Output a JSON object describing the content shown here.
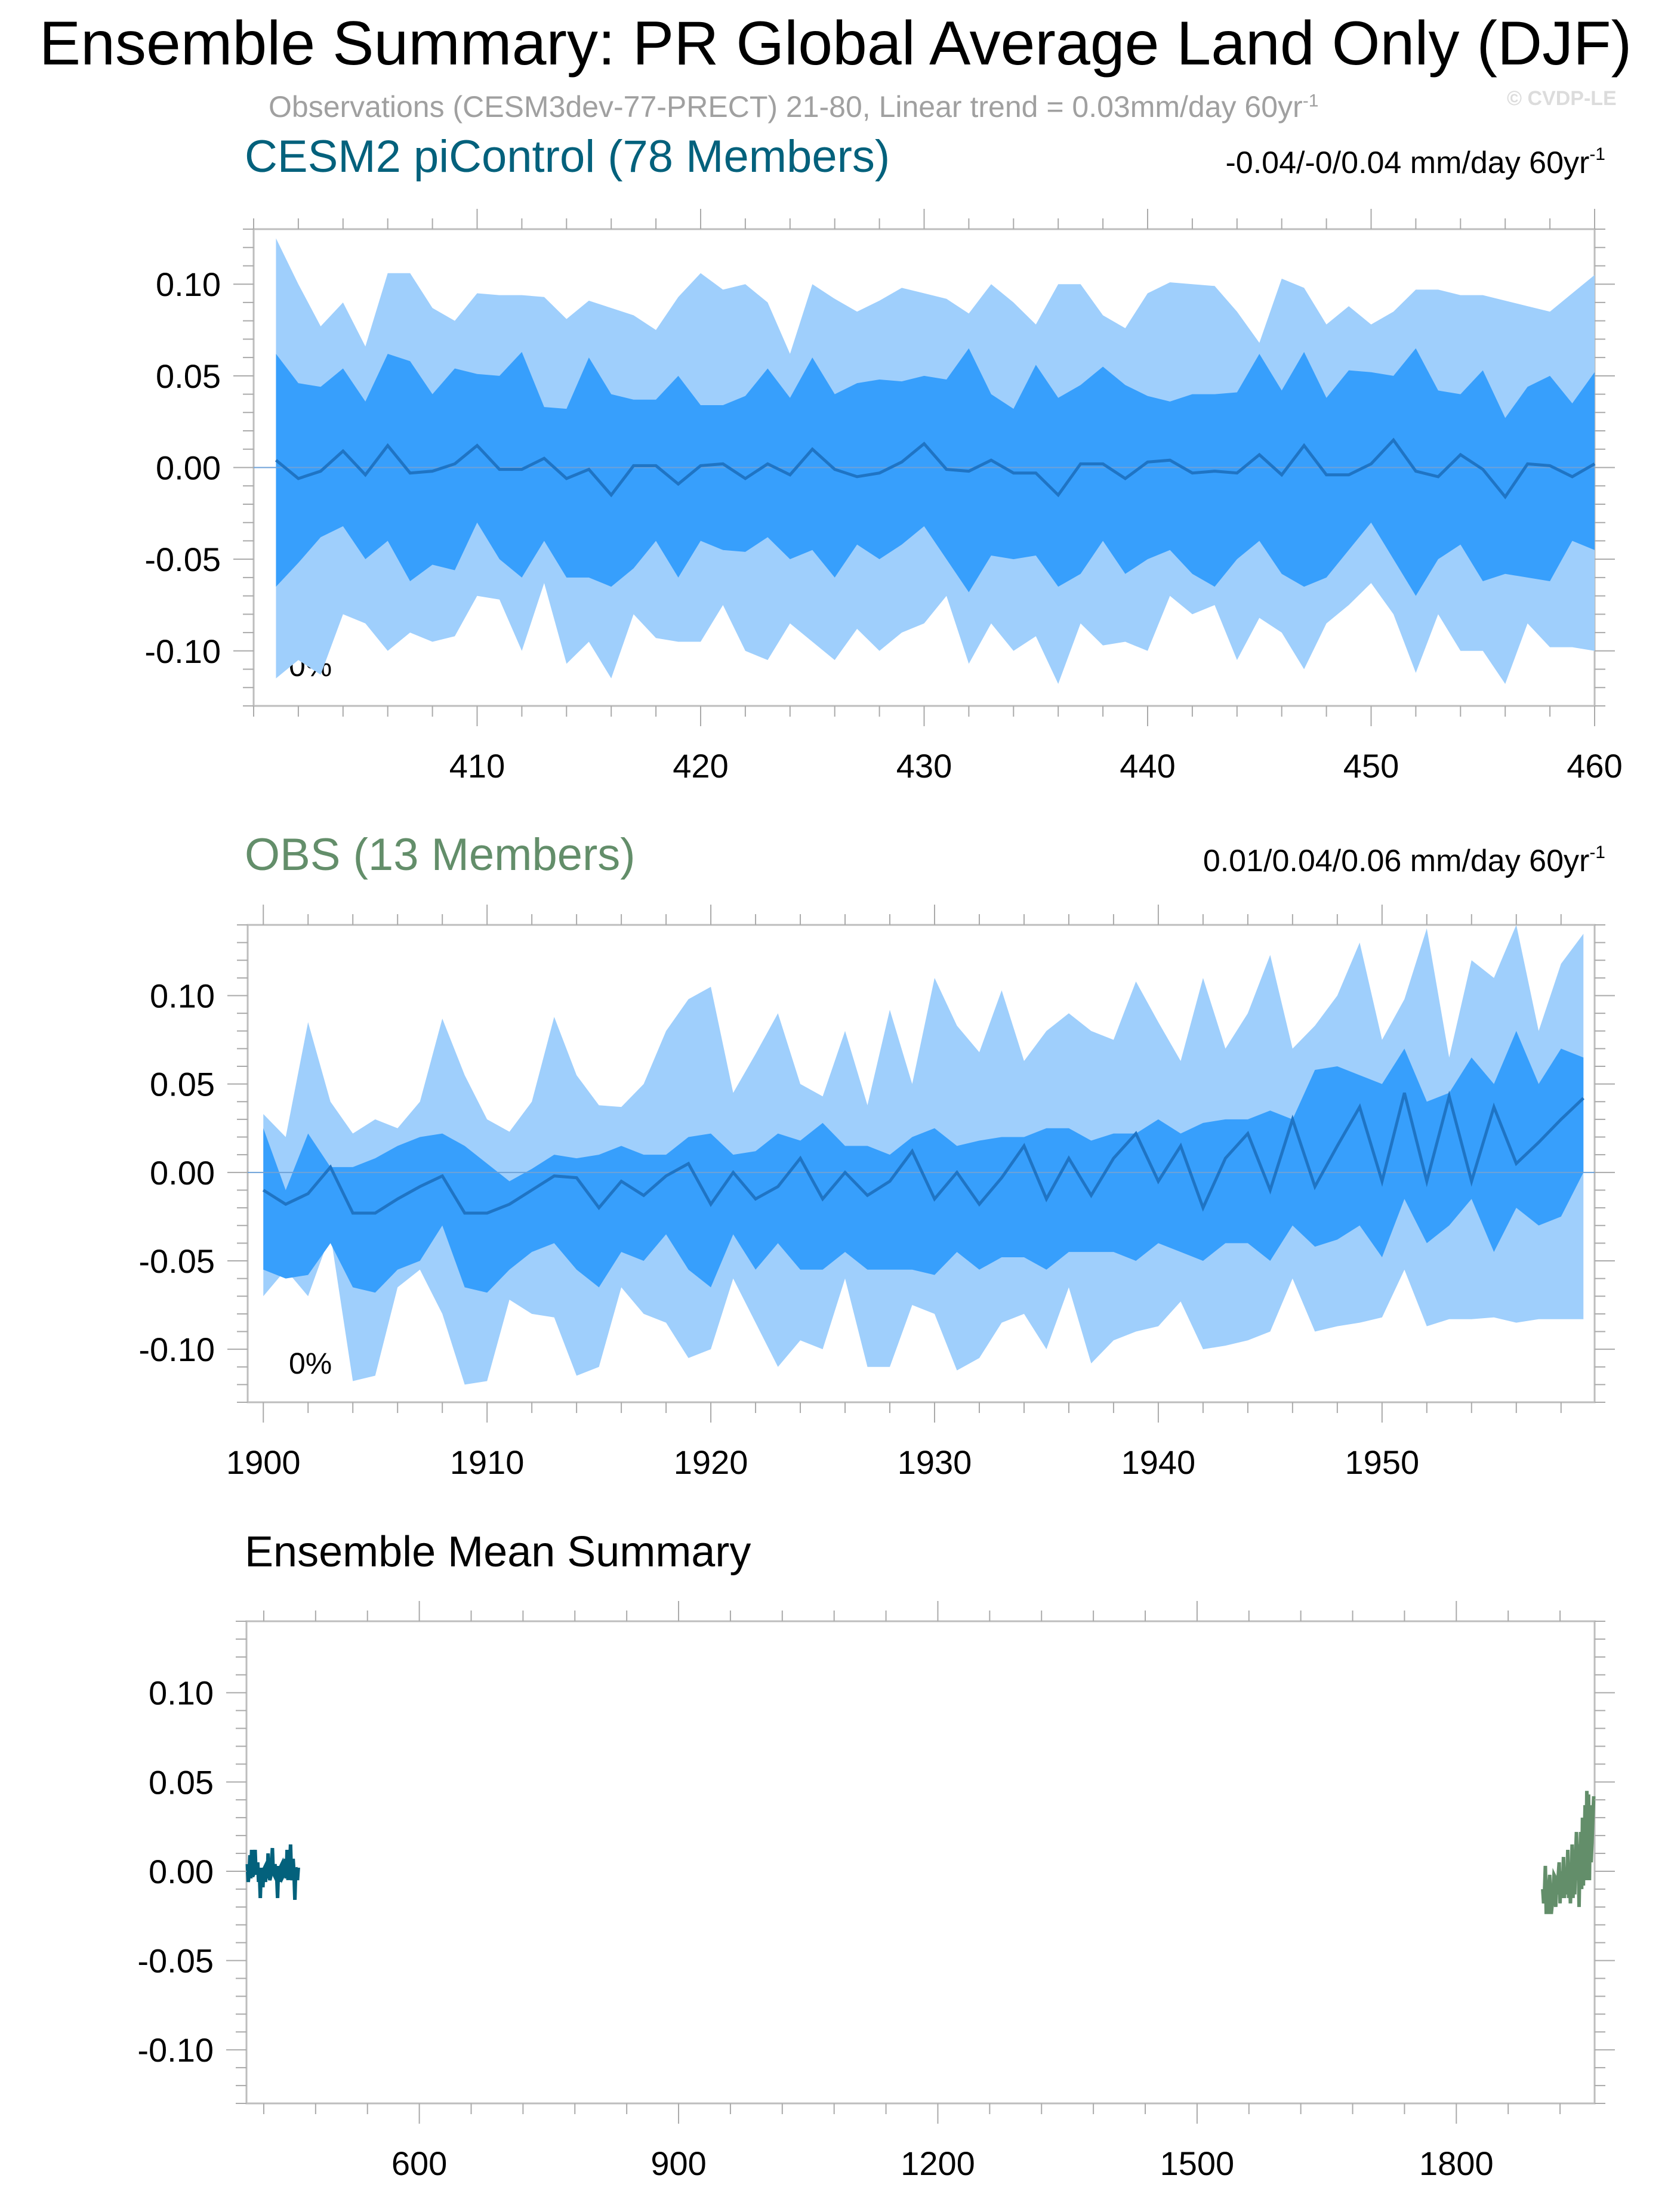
{
  "header": {
    "title": "Ensemble Summary: PR Global Average Land Only (DJF)",
    "subtitle_main": "Observations (CESM3dev-77-PRECT) 21-80, Linear trend = 0.03mm/day 60yr",
    "subtitle_sup": "-1",
    "watermark": "© CVDP-LE"
  },
  "colors": {
    "outer_band": "#9fcffc",
    "inner_band": "#379ffc",
    "mean_line": "#1f74c4",
    "cesm2_title": "#03617c",
    "obs_title": "#638e6a",
    "cesm2_mean": "#03617c",
    "obs_mean": "#638e6a",
    "axis": "#000000",
    "frame": "#bdbdbd"
  },
  "chart_data": [
    {
      "type": "area",
      "title": "CESM2 piControl (78 Members)",
      "trend_label": "-0.04/-0/0.04 mm/day 60yr",
      "trend_sup": "-1",
      "percent_label": "0%",
      "xlim": [
        400,
        460
      ],
      "ylim": [
        -0.13,
        0.13
      ],
      "yticks": [
        0.1,
        0.05,
        0.0,
        -0.05,
        -0.1
      ],
      "ytick_labels": [
        "0.10",
        "0.05",
        "0.00",
        "-0.05",
        "-0.10"
      ],
      "xticks": [
        410,
        420,
        430,
        440,
        450,
        460
      ],
      "xtick_labels": [
        "410",
        "420",
        "430",
        "440",
        "450",
        "460"
      ],
      "x": [
        401,
        402,
        403,
        404,
        405,
        406,
        407,
        408,
        409,
        410,
        411,
        412,
        413,
        414,
        415,
        416,
        417,
        418,
        419,
        420,
        421,
        422,
        423,
        424,
        425,
        426,
        427,
        428,
        429,
        430,
        431,
        432,
        433,
        434,
        435,
        436,
        437,
        438,
        439,
        440,
        441,
        442,
        443,
        444,
        445,
        446,
        447,
        448,
        449,
        450,
        451,
        452,
        453,
        454,
        455,
        456,
        457,
        458,
        459,
        460
      ],
      "series": [
        {
          "values": [
            0.125,
            0.1,
            0.077,
            0.09,
            0.066,
            0.106,
            0.106,
            0.087,
            0.08,
            0.095,
            0.094,
            0.094,
            0.093,
            0.081,
            0.091,
            0.087,
            0.083,
            0.075,
            0.093,
            0.106,
            0.097,
            0.1,
            0.09,
            0.062,
            0.1,
            0.092,
            0.085,
            0.091,
            0.098,
            0.095,
            0.092,
            0.084,
            0.1,
            0.09,
            0.078,
            0.1,
            0.1,
            0.083,
            0.076,
            0.095,
            0.101,
            0.1,
            0.099,
            0.085,
            0.068,
            0.103,
            0.098,
            0.078,
            0.088,
            0.078,
            0.085,
            0.097,
            0.097,
            0.094,
            0.094,
            0.091,
            0.088,
            0.085,
            0.095,
            0.105
          ]
        },
        {
          "values": [
            0.062,
            0.046,
            0.044,
            0.054,
            0.036,
            0.062,
            0.058,
            0.04,
            0.054,
            0.051,
            0.05,
            0.063,
            0.033,
            0.032,
            0.06,
            0.04,
            0.037,
            0.037,
            0.05,
            0.034,
            0.034,
            0.039,
            0.054,
            0.038,
            0.06,
            0.04,
            0.046,
            0.048,
            0.047,
            0.05,
            0.048,
            0.065,
            0.04,
            0.032,
            0.056,
            0.038,
            0.045,
            0.055,
            0.045,
            0.039,
            0.036,
            0.04,
            0.04,
            0.041,
            0.062,
            0.042,
            0.063,
            0.038,
            0.053,
            0.052,
            0.05,
            0.065,
            0.042,
            0.04,
            0.053,
            0.027,
            0.044,
            0.05,
            0.035,
            0.052
          ]
        },
        {
          "values": [
            0.004,
            -0.006,
            -0.002,
            0.009,
            -0.004,
            0.012,
            -0.003,
            -0.002,
            0.002,
            0.012,
            -0.001,
            -0.001,
            0.005,
            -0.006,
            -0.001,
            -0.015,
            0.001,
            0.001,
            -0.009,
            0.001,
            0.002,
            -0.006,
            0.002,
            -0.004,
            0.01,
            -0.001,
            -0.005,
            -0.003,
            0.003,
            0.013,
            -0.001,
            -0.002,
            0.004,
            -0.003,
            -0.003,
            -0.015,
            0.002,
            0.002,
            -0.006,
            0.003,
            0.004,
            -0.003,
            -0.002,
            -0.003,
            0.007,
            -0.004,
            0.012,
            -0.004,
            -0.004,
            0.002,
            0.015,
            -0.002,
            -0.005,
            0.007,
            -0.001,
            -0.016,
            0.002,
            0.001,
            -0.005,
            0.002
          ]
        },
        {
          "values": [
            -0.065,
            -0.052,
            -0.038,
            -0.032,
            -0.05,
            -0.04,
            -0.062,
            -0.053,
            -0.056,
            -0.03,
            -0.05,
            -0.06,
            -0.04,
            -0.06,
            -0.06,
            -0.065,
            -0.055,
            -0.04,
            -0.06,
            -0.04,
            -0.045,
            -0.046,
            -0.038,
            -0.05,
            -0.045,
            -0.06,
            -0.042,
            -0.05,
            -0.042,
            -0.032,
            -0.05,
            -0.068,
            -0.048,
            -0.05,
            -0.048,
            -0.065,
            -0.058,
            -0.04,
            -0.058,
            -0.05,
            -0.045,
            -0.058,
            -0.065,
            -0.05,
            -0.04,
            -0.058,
            -0.065,
            -0.06,
            -0.045,
            -0.03,
            -0.05,
            -0.07,
            -0.05,
            -0.042,
            -0.062,
            -0.058,
            -0.06,
            -0.062,
            -0.04,
            -0.045
          ]
        },
        {
          "values": [
            -0.115,
            -0.105,
            -0.113,
            -0.08,
            -0.085,
            -0.1,
            -0.09,
            -0.095,
            -0.092,
            -0.07,
            -0.072,
            -0.1,
            -0.063,
            -0.107,
            -0.095,
            -0.115,
            -0.08,
            -0.093,
            -0.095,
            -0.095,
            -0.075,
            -0.1,
            -0.105,
            -0.085,
            -0.095,
            -0.105,
            -0.088,
            -0.1,
            -0.09,
            -0.085,
            -0.07,
            -0.107,
            -0.085,
            -0.1,
            -0.092,
            -0.118,
            -0.085,
            -0.097,
            -0.095,
            -0.1,
            -0.07,
            -0.08,
            -0.075,
            -0.105,
            -0.082,
            -0.09,
            -0.11,
            -0.085,
            -0.075,
            -0.063,
            -0.08,
            -0.112,
            -0.08,
            -0.1,
            -0.1,
            -0.118,
            -0.085,
            -0.098,
            -0.098,
            -0.1
          ]
        }
      ]
    },
    {
      "type": "area",
      "title": "OBS (13 Members)",
      "trend_label": "0.01/0.04/0.06 mm/day 60yr",
      "trend_sup": "-1",
      "percent_label": "0%",
      "xlim": [
        1900,
        1959
      ],
      "ylim": [
        -0.13,
        0.14
      ],
      "yticks": [
        0.1,
        0.05,
        0.0,
        -0.05,
        -0.1
      ],
      "ytick_labels": [
        "0.10",
        "0.05",
        "0.00",
        "-0.05",
        "-0.10"
      ],
      "xticks": [
        1900,
        1910,
        1920,
        1930,
        1940,
        1950
      ],
      "xtick_labels": [
        "1900",
        "1910",
        "1920",
        "1930",
        "1940",
        "1950"
      ],
      "x": [
        1900,
        1901,
        1902,
        1903,
        1904,
        1905,
        1906,
        1907,
        1908,
        1909,
        1910,
        1911,
        1912,
        1913,
        1914,
        1915,
        1916,
        1917,
        1918,
        1919,
        1920,
        1921,
        1922,
        1923,
        1924,
        1925,
        1926,
        1927,
        1928,
        1929,
        1930,
        1931,
        1932,
        1933,
        1934,
        1935,
        1936,
        1937,
        1938,
        1939,
        1940,
        1941,
        1942,
        1943,
        1944,
        1945,
        1946,
        1947,
        1948,
        1949,
        1950,
        1951,
        1952,
        1953,
        1954,
        1955,
        1956,
        1957,
        1958,
        1959
      ],
      "series": [
        {
          "values": [
            0.033,
            0.02,
            0.085,
            0.04,
            0.022,
            0.03,
            0.025,
            0.04,
            0.087,
            0.055,
            0.03,
            0.023,
            0.04,
            0.088,
            0.055,
            0.038,
            0.037,
            0.05,
            0.08,
            0.098,
            0.105,
            0.045,
            0.067,
            0.09,
            0.05,
            0.043,
            0.08,
            0.038,
            0.092,
            0.05,
            0.11,
            0.083,
            0.068,
            0.103,
            0.063,
            0.08,
            0.09,
            0.08,
            0.075,
            0.108,
            0.085,
            0.063,
            0.11,
            0.07,
            0.09,
            0.123,
            0.07,
            0.083,
            0.1,
            0.13,
            0.075,
            0.098,
            0.138,
            0.065,
            0.12,
            0.11,
            0.14,
            0.08,
            0.118,
            0.135
          ]
        },
        {
          "values": [
            0.025,
            -0.01,
            0.022,
            0.003,
            0.003,
            0.008,
            0.015,
            0.02,
            0.022,
            0.015,
            0.005,
            -0.005,
            0.002,
            0.01,
            0.008,
            0.01,
            0.015,
            0.01,
            0.01,
            0.02,
            0.022,
            0.01,
            0.012,
            0.022,
            0.018,
            0.028,
            0.015,
            0.015,
            0.01,
            0.02,
            0.025,
            0.015,
            0.018,
            0.02,
            0.02,
            0.025,
            0.025,
            0.018,
            0.022,
            0.022,
            0.03,
            0.022,
            0.028,
            0.03,
            0.03,
            0.035,
            0.03,
            0.058,
            0.06,
            0.055,
            0.05,
            0.07,
            0.04,
            0.045,
            0.065,
            0.05,
            0.08,
            0.05,
            0.07,
            0.065
          ]
        },
        {
          "values": [
            -0.01,
            -0.018,
            -0.012,
            0.003,
            -0.023,
            -0.023,
            -0.015,
            -0.008,
            -0.002,
            -0.023,
            -0.023,
            -0.018,
            -0.01,
            -0.002,
            -0.003,
            -0.02,
            -0.005,
            -0.013,
            -0.002,
            0.005,
            -0.018,
            0.0,
            -0.015,
            -0.008,
            0.008,
            -0.015,
            0.0,
            -0.013,
            -0.005,
            0.012,
            -0.015,
            0.0,
            -0.018,
            -0.003,
            0.015,
            -0.015,
            0.008,
            -0.013,
            0.008,
            0.022,
            -0.005,
            0.015,
            -0.02,
            0.008,
            0.022,
            -0.01,
            0.03,
            -0.008,
            0.015,
            0.037,
            -0.005,
            0.045,
            -0.005,
            0.043,
            -0.005,
            0.037,
            0.005,
            0.017,
            0.03,
            0.042
          ]
        },
        {
          "values": [
            -0.055,
            -0.06,
            -0.058,
            -0.04,
            -0.065,
            -0.068,
            -0.055,
            -0.05,
            -0.03,
            -0.065,
            -0.068,
            -0.055,
            -0.045,
            -0.04,
            -0.055,
            -0.065,
            -0.045,
            -0.05,
            -0.035,
            -0.055,
            -0.065,
            -0.035,
            -0.055,
            -0.04,
            -0.055,
            -0.055,
            -0.045,
            -0.055,
            -0.055,
            -0.055,
            -0.058,
            -0.045,
            -0.055,
            -0.048,
            -0.048,
            -0.055,
            -0.045,
            -0.045,
            -0.045,
            -0.05,
            -0.04,
            -0.045,
            -0.05,
            -0.04,
            -0.04,
            -0.05,
            -0.03,
            -0.042,
            -0.038,
            -0.03,
            -0.048,
            -0.015,
            -0.04,
            -0.03,
            -0.015,
            -0.045,
            -0.02,
            -0.03,
            -0.025,
            0.0
          ]
        },
        {
          "values": [
            -0.07,
            -0.055,
            -0.07,
            -0.035,
            -0.118,
            -0.115,
            -0.065,
            -0.055,
            -0.08,
            -0.12,
            -0.118,
            -0.072,
            -0.08,
            -0.082,
            -0.115,
            -0.11,
            -0.065,
            -0.08,
            -0.085,
            -0.105,
            -0.1,
            -0.06,
            -0.085,
            -0.11,
            -0.095,
            -0.1,
            -0.06,
            -0.11,
            -0.11,
            -0.075,
            -0.08,
            -0.112,
            -0.105,
            -0.085,
            -0.08,
            -0.1,
            -0.065,
            -0.108,
            -0.095,
            -0.09,
            -0.087,
            -0.073,
            -0.1,
            -0.098,
            -0.095,
            -0.09,
            -0.06,
            -0.09,
            -0.087,
            -0.085,
            -0.082,
            -0.055,
            -0.087,
            -0.083,
            -0.083,
            -0.082,
            -0.085,
            -0.083,
            -0.083,
            -0.083
          ]
        }
      ]
    },
    {
      "type": "line",
      "title": "Ensemble Mean Summary",
      "xlim": [
        400,
        1960
      ],
      "ylim": [
        -0.13,
        0.14
      ],
      "yticks": [
        0.1,
        0.05,
        0.0,
        -0.05,
        -0.1
      ],
      "ytick_labels": [
        "0.10",
        "0.05",
        "0.00",
        "-0.05",
        "-0.10"
      ],
      "xticks": [
        600,
        900,
        1200,
        1500,
        1800
      ],
      "xtick_labels": [
        "600",
        "900",
        "1200",
        "1500",
        "1800"
      ]
    }
  ]
}
